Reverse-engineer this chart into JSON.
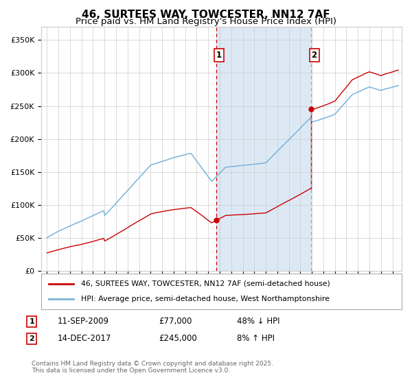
{
  "title": "46, SURTEES WAY, TOWCESTER, NN12 7AF",
  "subtitle": "Price paid vs. HM Land Registry's House Price Index (HPI)",
  "legend_entry1": "46, SURTEES WAY, TOWCESTER, NN12 7AF (semi-detached house)",
  "legend_entry2": "HPI: Average price, semi-detached house, West Northamptonshire",
  "annotation_footer": "Contains HM Land Registry data © Crown copyright and database right 2025.\nThis data is licensed under the Open Government Licence v3.0.",
  "purchase1_date": "11-SEP-2009",
  "purchase1_price": 77000,
  "purchase1_price_str": "£77,000",
  "purchase1_label": "48% ↓ HPI",
  "purchase2_date": "14-DEC-2017",
  "purchase2_price": 245000,
  "purchase2_price_str": "£245,000",
  "purchase2_label": "8% ↑ HPI",
  "purchase1_year": 2009.69,
  "purchase2_year": 2017.95,
  "hpi_color": "#7ab3d8",
  "price_color": "#cc0000",
  "shaded_region_color": "#dce9f5",
  "grid_color": "#cccccc",
  "background_color": "#ffffff",
  "title_fontsize": 11,
  "subtitle_fontsize": 9.5,
  "ylim": [
    0,
    370000
  ],
  "xlim_start": 1994.5,
  "xlim_end": 2025.8
}
